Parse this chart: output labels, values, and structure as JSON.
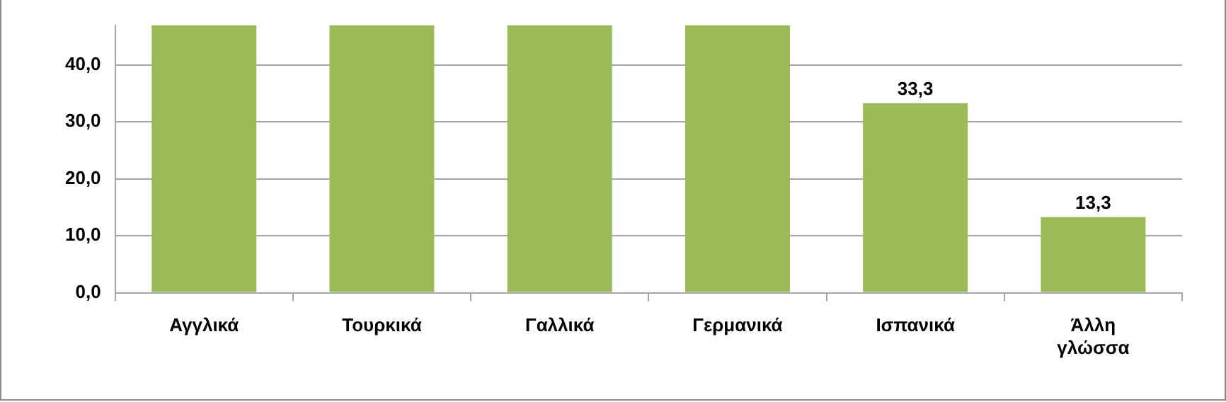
{
  "chart_data": {
    "type": "bar",
    "categories": [
      "Αγγλικά",
      "Τουρκικά",
      "Γαλλικά",
      "Γερμανικά",
      "Ισπανικά",
      "Άλλη γλώσσα"
    ],
    "values": [
      47,
      47,
      47,
      47,
      33.3,
      13.3
    ],
    "value_labels": [
      null,
      null,
      null,
      null,
      "33,3",
      "13,3"
    ],
    "color": "#9bbb59",
    "ylim": [
      0,
      47
    ],
    "yticks": [
      {
        "value": 0,
        "label": "0,0"
      },
      {
        "value": 10,
        "label": "10,0"
      },
      {
        "value": 20,
        "label": "20,0"
      },
      {
        "value": 30,
        "label": "30,0"
      },
      {
        "value": 40,
        "label": "40,0"
      }
    ],
    "grid": "y"
  }
}
